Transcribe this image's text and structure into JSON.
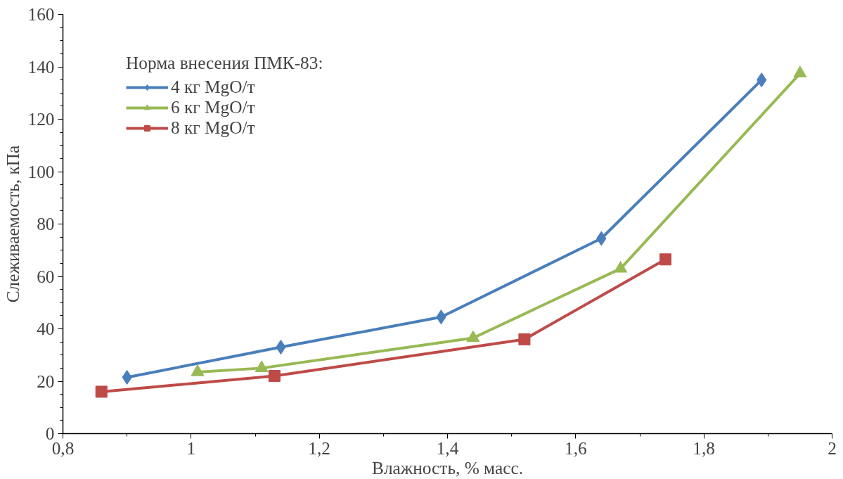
{
  "chart_data": {
    "type": "line",
    "xlabel": "Влажность, % масс.",
    "ylabel": "Слеживаемость, кПа",
    "legend_title": "Норма внесения ПМК-83:",
    "legend": "top left",
    "grid": false,
    "xlim": [
      0.8,
      2
    ],
    "xticks": [
      {
        "value": 0.8,
        "label": "0,8"
      },
      {
        "value": 1,
        "label": "1"
      },
      {
        "value": 1.2,
        "label": "1,2"
      },
      {
        "value": 1.4,
        "label": "1,4"
      },
      {
        "value": 1.6,
        "label": "1,6"
      },
      {
        "value": 1.8,
        "label": "1,8"
      },
      {
        "value": 2,
        "label": "2"
      }
    ],
    "ylim": [
      0,
      160
    ],
    "yticks": [
      0,
      20,
      40,
      60,
      80,
      100,
      120,
      140,
      160
    ],
    "series": [
      {
        "name": "4 кг MgO/т",
        "color": "#4a7ebb",
        "marker": "diamond",
        "x": [
          0.9,
          1.14,
          1.39,
          1.64,
          1.89
        ],
        "values": [
          21.5,
          33,
          44.5,
          74.5,
          135
        ]
      },
      {
        "name": "6 кг MgO/т",
        "color": "#98b954",
        "marker": "triangle",
        "x": [
          1.01,
          1.11,
          1.44,
          1.67,
          1.95
        ],
        "values": [
          23.5,
          25,
          36.5,
          63,
          137.5
        ]
      },
      {
        "name": "8 кг MgO/т",
        "color": "#be4b48",
        "marker": "square",
        "x": [
          0.86,
          1.13,
          1.52,
          1.74
        ],
        "values": [
          16,
          22,
          36,
          66.5
        ]
      }
    ]
  }
}
